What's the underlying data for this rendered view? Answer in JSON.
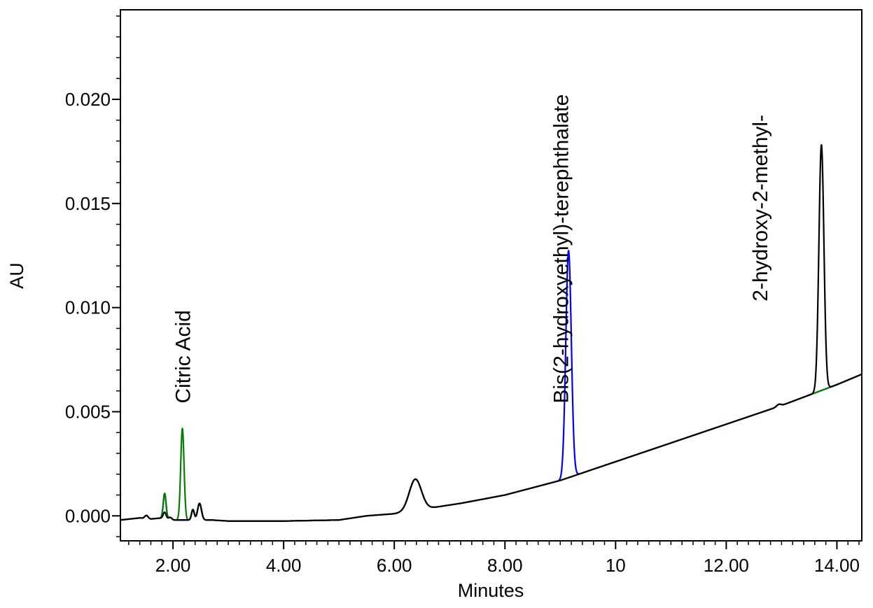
{
  "chart_data": {
    "type": "line",
    "title": "",
    "xlabel": "Minutes",
    "ylabel": "AU",
    "xlim": [
      1.05,
      14.45
    ],
    "ylim": [
      -0.0012,
      0.0243
    ],
    "x_ticks": [
      2.0,
      4.0,
      6.0,
      8.0,
      10.0,
      12.0,
      14.0
    ],
    "x_tick_labels": [
      "2.00",
      "4.00",
      "6.00",
      "8.00",
      10.0,
      "12.00",
      "14.00"
    ],
    "y_ticks": [
      0.0,
      0.005,
      0.01,
      0.015,
      0.02
    ],
    "y_tick_labels": [
      "0.000",
      "0.005",
      "0.010",
      "0.015",
      "0.020"
    ],
    "grid": false,
    "legend": "none",
    "series": [
      {
        "color": "#0000ff",
        "peaks": [
          {
            "x": 1.85,
            "height": 0.0012,
            "width": 0.025
          },
          {
            "x": 9.15,
            "height": 0.0109,
            "width": 0.05
          }
        ]
      },
      {
        "color": "#008000",
        "peaks": [
          {
            "x": 1.85,
            "height": 0.0012,
            "width": 0.025
          },
          {
            "x": 2.17,
            "height": 0.0044,
            "width": 0.03
          }
        ]
      },
      {
        "color": "#000000",
        "peaks": [
          {
            "x": 1.85,
            "height": 0.0003,
            "width": 0.025
          },
          {
            "x": 13.72,
            "height": 0.0118,
            "width": 0.045
          }
        ]
      }
    ],
    "annotations": [
      {
        "text": "Citric Acid",
        "x": 2.17,
        "y": 0.0054
      },
      {
        "text": "Bis(2-hydroxyethyl)-terephthalate",
        "x": 9.0,
        "y": 0.0054
      },
      {
        "text": "2-hydroxy-2-methyl-",
        "x": 12.6,
        "y": 0.0103
      }
    ]
  }
}
